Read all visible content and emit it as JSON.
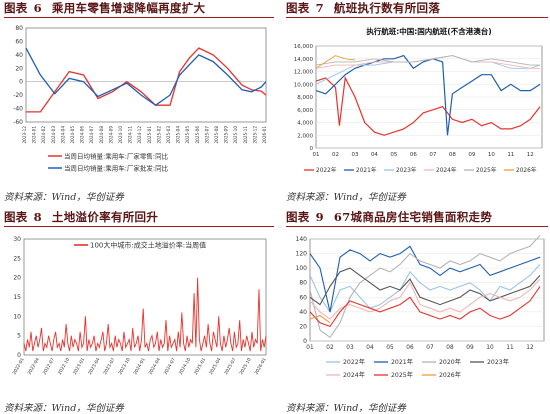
{
  "colors": {
    "title": "#5a1414",
    "rule": "#9c1c1c",
    "red": "#e8332d",
    "blue": "#1f5fb4",
    "orange": "#f39a3c",
    "gray": "#b4b4b4",
    "lightblue": "#9cc3e6",
    "pink": "#f2b7b3"
  },
  "panels": {
    "p6": {
      "prefix": "图表",
      "num": "6",
      "title": "乘用车零售增速降幅再度扩大",
      "source": "资料来源：Wind，华创证券"
    },
    "p7": {
      "prefix": "图表",
      "num": "7",
      "title": "航班执行数有所回落",
      "source": "资料来源：Wind，华创证券"
    },
    "p8": {
      "prefix": "图表",
      "num": "8",
      "title": "土地溢价率有所回升",
      "source": "资料来源：Wind，华创证券"
    },
    "p9": {
      "prefix": "图表",
      "num": "9",
      "title": "67城商品房住宅销售面积走势",
      "source": "资料来源：Wind，华创证券"
    }
  },
  "chart_data": [
    {
      "id": "p6",
      "type": "line",
      "y_ticks": [
        "80",
        "60",
        "40",
        "20",
        "0",
        "-20",
        "-40",
        "-60"
      ],
      "ylim": [
        -60,
        80
      ],
      "x_ticks": [
        "2023-12",
        "2024-01",
        "2024-02",
        "2024-03",
        "2024-04",
        "2024-05",
        "2024-06",
        "2024-07",
        "2024-08",
        "2024-09",
        "2024-10",
        "2024-11",
        "2024-12",
        "2025-01",
        "2025-02",
        "2025-03",
        "2025-04",
        "2025-05",
        "2025-06",
        "2025-07",
        "2025-08",
        "2025-09",
        "2025-10",
        "2025-11",
        "2025-12",
        "2026-01"
      ],
      "series": [
        {
          "name": "当周日均销量:乘用车:厂家零售:同比",
          "color": "#e8332d",
          "x": [
            0,
            1.5,
            3,
            4.5,
            6,
            7.5,
            9,
            10.5,
            12,
            13.5,
            15,
            16,
            17,
            18,
            19.5,
            21,
            22.5,
            23.5,
            24.5,
            25
          ],
          "y": [
            -45,
            -45,
            -15,
            15,
            10,
            -25,
            -15,
            0,
            -15,
            -35,
            -35,
            15,
            35,
            50,
            40,
            20,
            -5,
            -12,
            -14,
            -20
          ]
        },
        {
          "name": "当周日均销量:乘用车:厂家批发:同比",
          "color": "#1f5fb4",
          "x": [
            0,
            1.5,
            3,
            4.5,
            6,
            7.5,
            9,
            10.5,
            12,
            13.5,
            15,
            16,
            17,
            18,
            19.5,
            21,
            22.5,
            23.5,
            24.5,
            25
          ],
          "y": [
            50,
            10,
            -18,
            5,
            0,
            -22,
            -12,
            -2,
            -20,
            -35,
            -20,
            10,
            25,
            40,
            30,
            10,
            -12,
            -15,
            -8,
            0
          ]
        }
      ]
    },
    {
      "id": "p7",
      "type": "line",
      "inner_title": "执行航班:中国:国内航班(不含港澳台)",
      "y_ticks": [
        "16,000",
        "14,000",
        "12,000",
        "10,000",
        "8,000",
        "6,000",
        "4,000",
        "2,000",
        "0"
      ],
      "ylim": [
        0,
        16000
      ],
      "x_ticks": [
        "01",
        "02",
        "03",
        "04",
        "05",
        "06",
        "07",
        "08",
        "09",
        "10",
        "11",
        "12"
      ],
      "xlim": [
        1,
        12.6
      ],
      "series": [
        {
          "name": "2022年",
          "color": "#e8332d",
          "x": [
            1,
            1.5,
            2,
            2.2,
            2.5,
            3,
            3.5,
            4,
            4.5,
            5,
            5.5,
            6,
            6.5,
            7,
            7.5,
            8,
            8.5,
            9,
            9.5,
            10,
            10.5,
            11,
            11.5,
            12,
            12.5
          ],
          "y": [
            10500,
            11000,
            9500,
            3500,
            11000,
            8000,
            4000,
            2500,
            2000,
            2500,
            3000,
            4000,
            5500,
            6000,
            6500,
            4500,
            4000,
            4500,
            3500,
            4000,
            3000,
            3000,
            3500,
            4500,
            6500
          ]
        },
        {
          "name": "2021年",
          "color": "#1f5fb4",
          "x": [
            1,
            1.5,
            2,
            2.5,
            3,
            3.5,
            4,
            4.5,
            5,
            5.5,
            6,
            6.5,
            7,
            7.5,
            7.75,
            8,
            8.5,
            9,
            9.5,
            10,
            10.5,
            11,
            11.5,
            12,
            12.5
          ],
          "y": [
            9000,
            8500,
            10000,
            11500,
            12500,
            13000,
            13500,
            14000,
            14000,
            14500,
            12500,
            13500,
            14000,
            13500,
            2000,
            8500,
            9500,
            10500,
            11500,
            11500,
            9000,
            10000,
            9000,
            9000,
            10000
          ]
        },
        {
          "name": "2023年",
          "color": "#9cc3e6",
          "x": [
            1,
            2,
            3,
            4,
            5,
            6,
            7,
            8,
            9,
            10,
            11,
            12,
            12.5
          ],
          "y": [
            10000,
            11500,
            13000,
            13000,
            13500,
            13500,
            14000,
            14500,
            13500,
            13500,
            12500,
            12500,
            13000
          ]
        },
        {
          "name": "2024年",
          "color": "#f2b7b3",
          "x": [
            1,
            2,
            3,
            4,
            5,
            6,
            7,
            8,
            9,
            10,
            11,
            12,
            12.5
          ],
          "y": [
            12500,
            13000,
            13000,
            13500,
            13500,
            13500,
            14000,
            14500,
            13500,
            13500,
            13000,
            12500,
            12500
          ]
        },
        {
          "name": "2025年",
          "color": "#b4b4b4",
          "x": [
            1,
            2,
            3,
            4,
            5,
            6,
            7,
            8,
            9,
            10,
            11,
            12,
            12.5
          ],
          "y": [
            13000,
            13500,
            13500,
            14000,
            13500,
            13500,
            14000,
            14500,
            13500,
            14000,
            13500,
            13000,
            13000
          ]
        },
        {
          "name": "2026年",
          "color": "#f39a3c",
          "x": [
            1,
            1.5,
            2,
            2.5,
            3
          ],
          "y": [
            12500,
            13500,
            14500,
            14000,
            13800
          ]
        }
      ]
    },
    {
      "id": "p8",
      "type": "line",
      "legend": "100大中城市:成交土地溢价率:当周值",
      "y_ticks": [
        "30",
        "25",
        "20",
        "15",
        "10",
        "5",
        "0"
      ],
      "ylim": [
        0,
        30
      ],
      "x_ticks": [
        "2022-01",
        "2022-04",
        "2022-07",
        "2022-10",
        "2023-01",
        "2023-04",
        "2023-07",
        "2023-10",
        "2024-01",
        "2024-04",
        "2024-07",
        "2024-10",
        "2025-01",
        "2025-04",
        "2025-07",
        "2025-10",
        "2026-01"
      ],
      "series": [
        {
          "name": "100大中城市:成交土地溢价率:当周值",
          "color": "#e8332d",
          "y": [
            3,
            1,
            4,
            2,
            6,
            1,
            3,
            5,
            2,
            4,
            7,
            1,
            3,
            2,
            5,
            3,
            1,
            4,
            6,
            2,
            3,
            1,
            4,
            2,
            8,
            3,
            1,
            5,
            2,
            4,
            3,
            1,
            6,
            2,
            3,
            10,
            1,
            4,
            2,
            3,
            5,
            1,
            3,
            2,
            4,
            6,
            1,
            3,
            8,
            2,
            3,
            1,
            5,
            2,
            4,
            3,
            1,
            6,
            2,
            3,
            4,
            1,
            7,
            2,
            3,
            5,
            1,
            4,
            12,
            2,
            3,
            1,
            4,
            5,
            2,
            3,
            6,
            1,
            4,
            2,
            3,
            9,
            1,
            5,
            2,
            3,
            4,
            1,
            6,
            2,
            11,
            3,
            1,
            5,
            2,
            4,
            3,
            16,
            2,
            20,
            4,
            1,
            3,
            5,
            2,
            8,
            3,
            1,
            6,
            4,
            2,
            10,
            3,
            1,
            5,
            2,
            4,
            7,
            3,
            1,
            6,
            2,
            3,
            9,
            1,
            4,
            2,
            5,
            3,
            1,
            6,
            2,
            4,
            3,
            17,
            1,
            4,
            2,
            5
          ]
        }
      ]
    },
    {
      "id": "p9",
      "type": "line",
      "y_ticks": [
        "140",
        "120",
        "100",
        "80",
        "60",
        "40",
        "20",
        "0"
      ],
      "ylim": [
        0,
        140
      ],
      "x_ticks": [
        "01",
        "02",
        "03",
        "04",
        "05",
        "06",
        "07",
        "08",
        "09",
        "10",
        "11",
        "12"
      ],
      "xlim": [
        1,
        12.7
      ],
      "series": [
        {
          "name": "2022年",
          "color": "#9cc3e6",
          "x": [
            1,
            1.5,
            2,
            2.5,
            3,
            3.5,
            4,
            4.5,
            5,
            5.5,
            6,
            6.5,
            7,
            7.5,
            8,
            8.5,
            9,
            9.5,
            10,
            10.5,
            11,
            11.5,
            12,
            12.5
          ],
          "y": [
            90,
            60,
            40,
            70,
            75,
            60,
            45,
            50,
            60,
            70,
            95,
            80,
            70,
            75,
            70,
            75,
            80,
            70,
            55,
            75,
            70,
            80,
            90,
            105
          ]
        },
        {
          "name": "2021年",
          "color": "#1f5fb4",
          "x": [
            1,
            1.5,
            2,
            2.5,
            3,
            3.5,
            4,
            4.5,
            5,
            5.5,
            6,
            6.5,
            7,
            7.5,
            8,
            8.5,
            9,
            9.5,
            10,
            10.5,
            11,
            11.5,
            12,
            12.5
          ],
          "y": [
            120,
            100,
            40,
            115,
            125,
            120,
            110,
            120,
            115,
            120,
            130,
            105,
            100,
            90,
            100,
            95,
            100,
            105,
            90,
            95,
            100,
            105,
            110,
            115
          ]
        },
        {
          "name": "2020年",
          "color": "#b4b4b4",
          "x": [
            1,
            1.5,
            2,
            2.5,
            3,
            3.5,
            4,
            4.5,
            5,
            5.5,
            6,
            6.5,
            7,
            7.5,
            8,
            8.5,
            9,
            9.5,
            10,
            10.5,
            11,
            11.5,
            12,
            12.5
          ],
          "y": [
            70,
            15,
            5,
            25,
            60,
            80,
            90,
            100,
            95,
            105,
            120,
            110,
            105,
            100,
            110,
            105,
            110,
            120,
            115,
            110,
            120,
            125,
            130,
            145
          ]
        },
        {
          "name": "2023年",
          "color": "#555555",
          "x": [
            1,
            1.5,
            2,
            2.5,
            3,
            3.5,
            4,
            4.5,
            5,
            5.5,
            6,
            6.5,
            7,
            7.5,
            8,
            8.5,
            9,
            9.5,
            10,
            10.5,
            11,
            11.5,
            12,
            12.5
          ],
          "y": [
            60,
            50,
            75,
            95,
            100,
            90,
            80,
            70,
            75,
            70,
            85,
            60,
            55,
            50,
            55,
            60,
            70,
            65,
            55,
            60,
            65,
            70,
            75,
            90
          ]
        },
        {
          "name": "2024年",
          "color": "#f2b7b3",
          "x": [
            1,
            1.5,
            2,
            2.5,
            3,
            3.5,
            4,
            4.5,
            5,
            5.5,
            6,
            6.5,
            7,
            7.5,
            8,
            8.5,
            9,
            9.5,
            10,
            10.5,
            11,
            11.5,
            12,
            12.5
          ],
          "y": [
            55,
            40,
            30,
            45,
            50,
            45,
            40,
            45,
            55,
            60,
            80,
            50,
            45,
            40,
            45,
            40,
            50,
            60,
            65,
            60,
            55,
            60,
            70,
            85
          ]
        },
        {
          "name": "2025年",
          "color": "#e8332d",
          "x": [
            1,
            1.5,
            2,
            2.5,
            3,
            3.5,
            4,
            4.5,
            5,
            5.5,
            6,
            6.5,
            7,
            7.5,
            8,
            8.5,
            9,
            9.5,
            10,
            10.5,
            11,
            11.5,
            12,
            12.5
          ],
          "y": [
            40,
            25,
            20,
            40,
            55,
            50,
            45,
            40,
            45,
            50,
            60,
            40,
            35,
            30,
            35,
            30,
            40,
            45,
            35,
            30,
            35,
            45,
            55,
            75
          ]
        },
        {
          "name": "2026年",
          "color": "#f39a3c",
          "x": [
            1,
            1.5,
            2
          ],
          "y": [
            30,
            35,
            25
          ]
        }
      ]
    }
  ]
}
